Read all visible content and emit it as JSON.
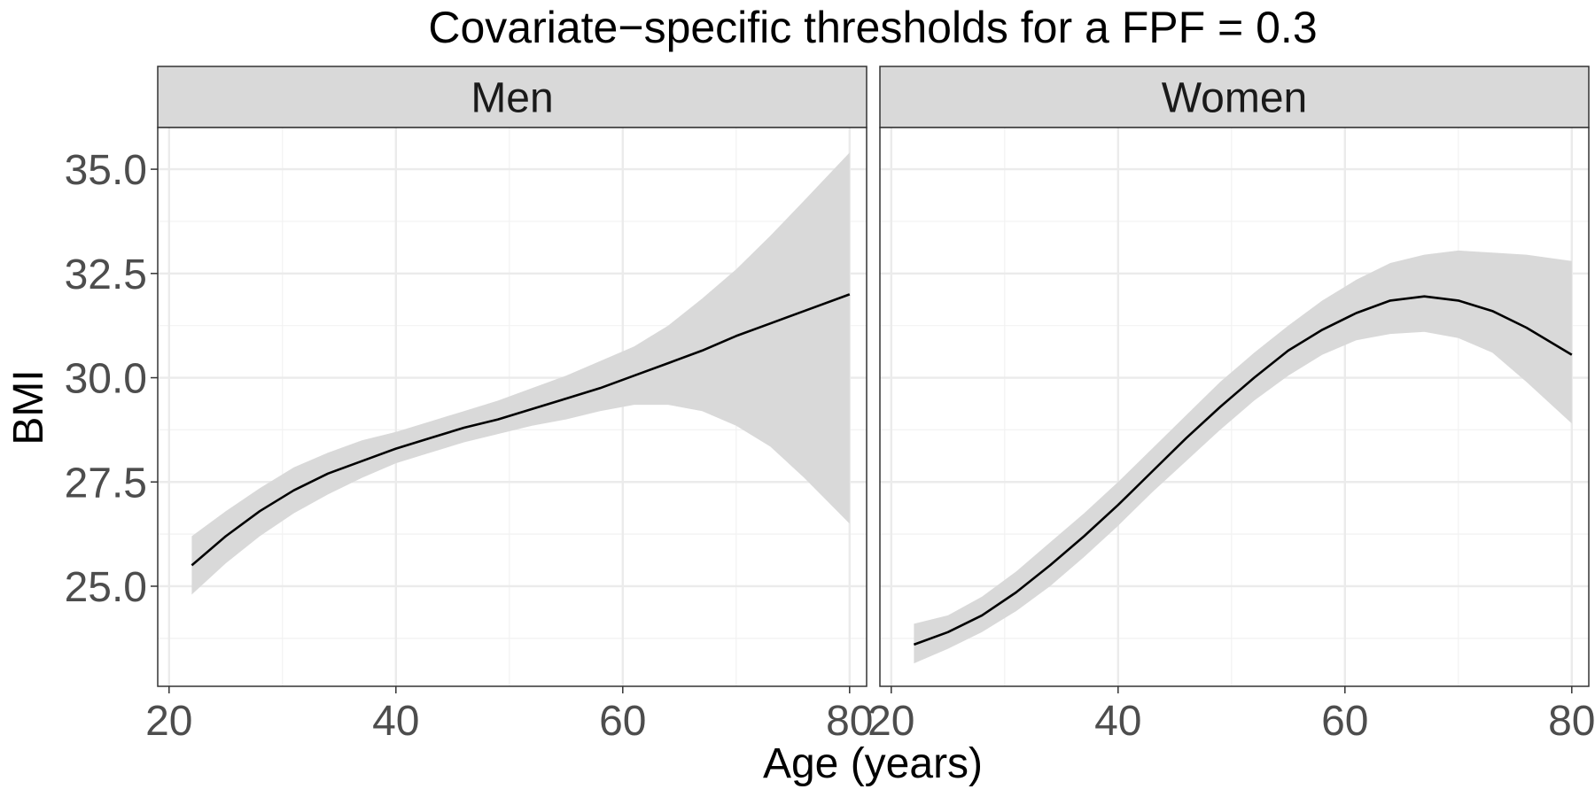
{
  "chart_data": {
    "type": "line",
    "title": "Covariate−specific thresholds for a FPF = 0.3",
    "xlabel": "Age (years)",
    "ylabel": "BMI",
    "x_ticks": [
      "20",
      "40",
      "60",
      "80"
    ],
    "y_ticks": [
      "25.0",
      "27.5",
      "30.0",
      "32.5",
      "35.0"
    ],
    "xlim": [
      19,
      81.5
    ],
    "ylim": [
      22.6,
      36.0
    ],
    "grid": true,
    "legend": "none",
    "colors": {
      "line": "#000000",
      "band": "#d9d9d9",
      "strip": "#d9d9d9",
      "grid": "#ebebeb"
    },
    "panels": [
      {
        "strip": "Men",
        "x": [
          22,
          25,
          28,
          31,
          34,
          37,
          40,
          43,
          46,
          49,
          52,
          55,
          58,
          61,
          64,
          67,
          70,
          73,
          76,
          80
        ],
        "y": [
          25.5,
          26.2,
          26.8,
          27.3,
          27.7,
          28.0,
          28.3,
          28.55,
          28.8,
          29.0,
          29.25,
          29.5,
          29.75,
          30.05,
          30.35,
          30.65,
          31.0,
          31.3,
          31.6,
          32.0
        ],
        "lower": [
          24.8,
          25.55,
          26.2,
          26.75,
          27.2,
          27.6,
          27.95,
          28.2,
          28.45,
          28.65,
          28.85,
          29.0,
          29.2,
          29.35,
          29.35,
          29.2,
          28.85,
          28.35,
          27.6,
          26.5
        ],
        "upper": [
          26.2,
          26.8,
          27.35,
          27.85,
          28.2,
          28.5,
          28.7,
          28.95,
          29.2,
          29.45,
          29.75,
          30.05,
          30.4,
          30.75,
          31.25,
          31.9,
          32.6,
          33.4,
          34.25,
          35.4
        ]
      },
      {
        "strip": "Women",
        "x": [
          22,
          25,
          28,
          31,
          34,
          37,
          40,
          43,
          46,
          49,
          52,
          55,
          58,
          61,
          64,
          67,
          70,
          73,
          76,
          80
        ],
        "y": [
          23.6,
          23.9,
          24.3,
          24.85,
          25.5,
          26.2,
          26.95,
          27.75,
          28.55,
          29.3,
          30.0,
          30.65,
          31.15,
          31.55,
          31.85,
          31.95,
          31.85,
          31.6,
          31.2,
          30.55
        ],
        "lower": [
          23.15,
          23.5,
          23.9,
          24.4,
          25.0,
          25.7,
          26.45,
          27.25,
          28.0,
          28.75,
          29.45,
          30.05,
          30.55,
          30.9,
          31.05,
          31.1,
          30.95,
          30.6,
          29.9,
          28.9
        ],
        "upper": [
          24.1,
          24.3,
          24.75,
          25.35,
          26.05,
          26.75,
          27.5,
          28.3,
          29.1,
          29.9,
          30.6,
          31.25,
          31.85,
          32.35,
          32.75,
          32.95,
          33.05,
          33.0,
          32.95,
          32.8
        ]
      }
    ]
  }
}
